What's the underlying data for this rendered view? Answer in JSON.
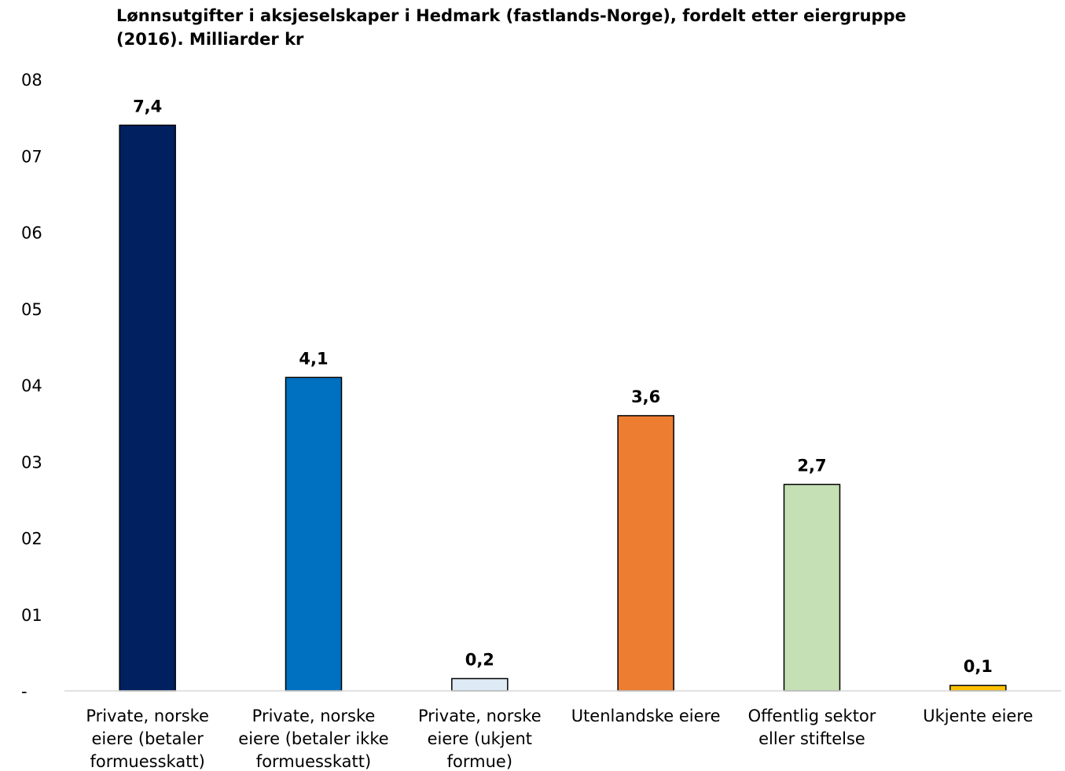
{
  "chart_data": {
    "type": "bar",
    "title_lines": [
      "Lønnsutgifter i aksjeselskaper i Hedmark (fastlands-Norge), fordelt etter eiergruppe",
      "(2016). Milliarder kr"
    ],
    "categories": [
      [
        "Private, norske",
        "eiere (betaler",
        "formuesskatt)"
      ],
      [
        "Private, norske",
        "eiere (betaler ikke",
        "formuesskatt)"
      ],
      [
        "Private, norske",
        "eiere (ukjent",
        "formue)"
      ],
      [
        "Utenlandske eiere"
      ],
      [
        "Offentlig sektor",
        "eller stiftelse"
      ],
      [
        "Ukjente eiere"
      ]
    ],
    "values": [
      7.4,
      4.1,
      0.16,
      3.6,
      2.7,
      0.07
    ],
    "data_labels": [
      "7,4",
      "4,1",
      "0,2",
      "3,6",
      "2,7",
      "0,1"
    ],
    "colors": [
      "#002060",
      "#0070C0",
      "#DEEBF7",
      "#ED7D31",
      "#C5E0B4",
      "#FFC000"
    ],
    "ylim": [
      0,
      8
    ],
    "yticks": [
      0,
      1,
      2,
      3,
      4,
      5,
      6,
      7,
      8
    ],
    "ytick_labels": [
      "-",
      "01",
      "02",
      "03",
      "04",
      "05",
      "06",
      "07",
      "08"
    ],
    "grid": false,
    "legend": "none"
  }
}
